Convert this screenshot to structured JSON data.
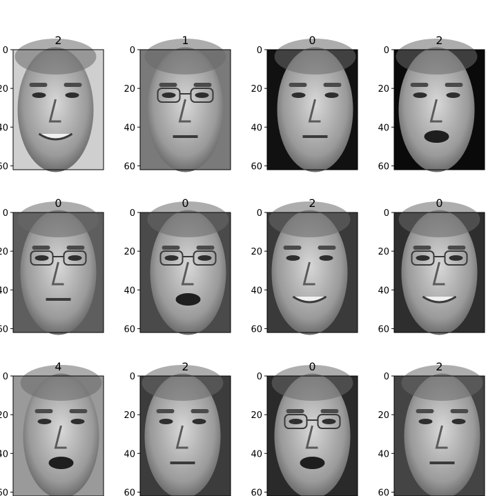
{
  "chart_data": {
    "type": "image-grid",
    "rows": 3,
    "cols": 4,
    "y_ticks": [
      0,
      20,
      40,
      60
    ],
    "y_range": [
      0,
      62
    ],
    "colormap": "gray",
    "panels": [
      {
        "title": "2",
        "face": "smiling-man-light-bg"
      },
      {
        "title": "1",
        "face": "man-glasses-gray-bg"
      },
      {
        "title": "0",
        "face": "man-frowning-dark-bg"
      },
      {
        "title": "2",
        "face": "man-shouting-dark-bg"
      },
      {
        "title": "0",
        "face": "man-glasses-side-glance"
      },
      {
        "title": "0",
        "face": "man-glasses-speaking"
      },
      {
        "title": "2",
        "face": "man-smiling-dark-bg"
      },
      {
        "title": "0",
        "face": "man-glasses-grin"
      },
      {
        "title": "4",
        "face": "man-speaking-light-bg"
      },
      {
        "title": "2",
        "face": "man-head-tilted"
      },
      {
        "title": "0",
        "face": "man-glasses-laughing"
      },
      {
        "title": "2",
        "face": "man-pursed-lips"
      }
    ]
  }
}
